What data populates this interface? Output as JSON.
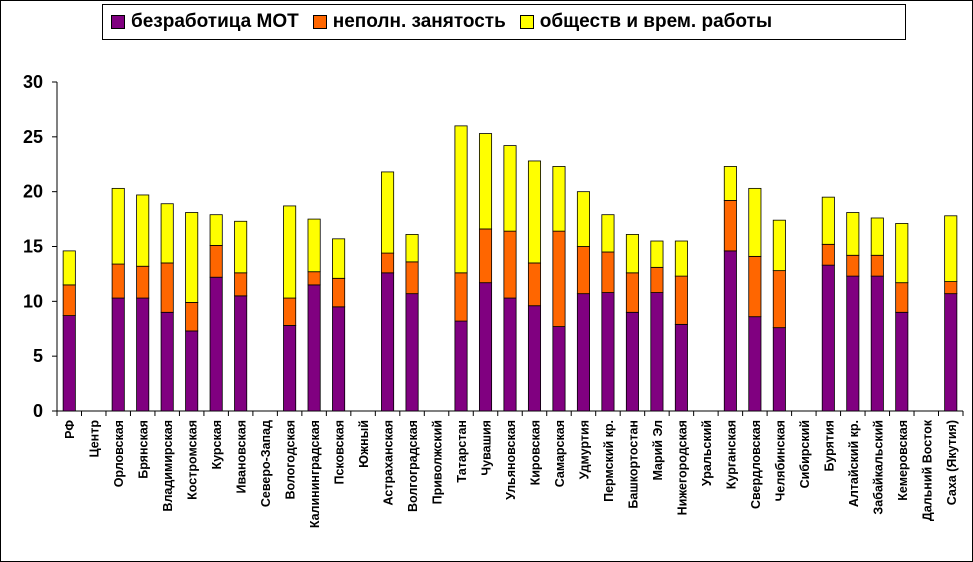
{
  "chart_data": {
    "type": "bar",
    "stacked": true,
    "title": "",
    "xlabel": "",
    "ylabel": "",
    "ylim": [
      0,
      30
    ],
    "yticks": [
      0,
      5,
      10,
      15,
      20,
      25,
      30
    ],
    "grid": false,
    "legend_position": "top",
    "categories": [
      "РФ",
      "Центр",
      "Орловская",
      "Брянская",
      "Владимирская",
      "Костромская",
      "Курская",
      "Ивановская",
      "Северо-Запад",
      "Вологодская",
      "Калининградская",
      "Псковская",
      "Южный",
      "Астраханская",
      "Волгоградская",
      "Приволжский",
      "Татарстан",
      "Чувашия",
      "Ульяновская",
      "Кировская",
      "Самарская",
      "Удмуртия",
      "Пермский кр.",
      "Башкортостан",
      "Марий Эл",
      "Нижегородская",
      "Уральский",
      "Курганская",
      "Свердловская",
      "Челябинская",
      "Сибирский",
      "Бурятия",
      "Алтайский кр.",
      "Забайкальский",
      "Кемеровская",
      "Дальний Восток",
      "Саха (Якутия)"
    ],
    "series": [
      {
        "name": "безработица МОТ",
        "color": "#800080",
        "values": [
          8.7,
          null,
          10.3,
          10.3,
          9.0,
          7.3,
          12.2,
          10.5,
          null,
          7.8,
          11.5,
          9.5,
          null,
          12.6,
          10.7,
          null,
          8.2,
          11.7,
          10.3,
          9.6,
          7.7,
          10.7,
          10.8,
          9.0,
          10.8,
          7.9,
          null,
          14.6,
          8.6,
          7.6,
          null,
          13.3,
          12.3,
          12.3,
          9.0,
          null,
          10.7
        ]
      },
      {
        "name": "неполн. занятость",
        "color": "#FF6600",
        "values": [
          2.8,
          null,
          3.1,
          2.9,
          4.5,
          2.6,
          2.9,
          2.1,
          null,
          2.5,
          1.2,
          2.6,
          null,
          1.8,
          2.9,
          null,
          4.4,
          4.9,
          6.1,
          3.9,
          8.7,
          4.3,
          3.7,
          3.6,
          2.3,
          4.4,
          null,
          4.6,
          5.5,
          5.2,
          null,
          1.9,
          1.9,
          1.9,
          2.7,
          null,
          1.1
        ]
      },
      {
        "name": "обществ и врем. работы",
        "color": "#FFFF00",
        "values": [
          3.1,
          null,
          6.9,
          6.5,
          5.4,
          8.2,
          2.8,
          4.7,
          null,
          8.4,
          4.8,
          3.6,
          null,
          7.4,
          2.5,
          null,
          13.4,
          8.7,
          7.8,
          9.3,
          5.9,
          5.0,
          3.4,
          3.5,
          2.4,
          3.2,
          null,
          3.1,
          6.2,
          4.6,
          null,
          4.3,
          3.9,
          3.4,
          5.4,
          null,
          6.0
        ]
      }
    ]
  }
}
